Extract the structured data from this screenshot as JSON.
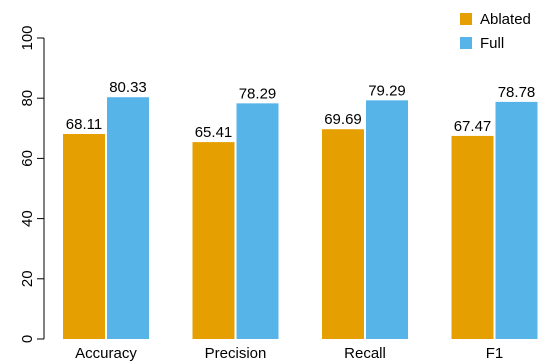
{
  "chart_data": {
    "type": "bar",
    "title": "",
    "xlabel": "",
    "ylabel": "",
    "ylim": [
      0,
      100
    ],
    "yticks": [
      0,
      20,
      40,
      60,
      80,
      100
    ],
    "grid": false,
    "legend_position": "top-right",
    "categories": [
      "Accuracy",
      "Precision",
      "Recall",
      "F1"
    ],
    "series": [
      {
        "name": "Ablated",
        "color": "#E69F00",
        "values": [
          68.11,
          65.41,
          69.69,
          67.47
        ],
        "labels": [
          "68.11",
          "65.41",
          "69.69",
          "67.47"
        ]
      },
      {
        "name": "Full",
        "color": "#56B4E9",
        "values": [
          80.33,
          78.29,
          79.29,
          78.78
        ],
        "labels": [
          "80.33",
          "78.29",
          "79.29",
          "78.78"
        ]
      }
    ]
  }
}
